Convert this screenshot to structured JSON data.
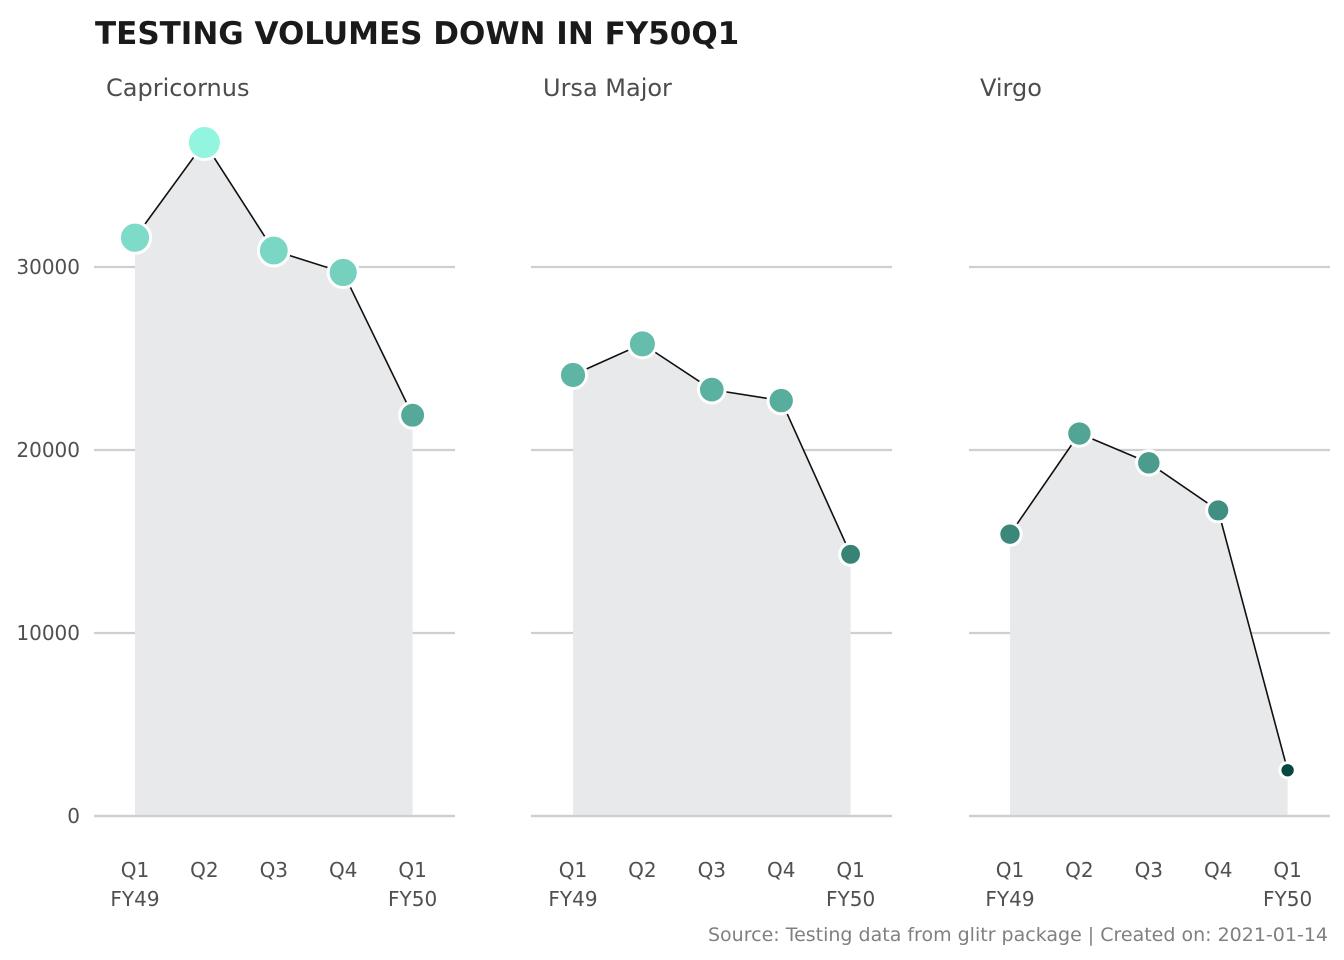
{
  "chart_data": {
    "type": "line",
    "title": "TESTING VOLUMES DOWN IN FY50Q1",
    "caption": "Source: Testing data from glitr package | Created on: 2021-01-14",
    "categories": [
      "Q1\nFY49",
      "Q2",
      "Q3",
      "Q4",
      "Q1\nFY50"
    ],
    "ylim": [
      0,
      37000
    ],
    "yticks": [
      0,
      10000,
      20000,
      30000
    ],
    "grid": true,
    "legend": "none",
    "color_scale": {
      "low": "#07473f",
      "high": "#92f5df",
      "min": 2500,
      "max": 36800
    },
    "area_fill": "#e7e9eb",
    "facets": [
      {
        "name": "Capricornus",
        "values": [
          31600,
          36800,
          30900,
          29700,
          21900
        ]
      },
      {
        "name": "Ursa Major",
        "values": [
          24100,
          25800,
          23300,
          22700,
          14300
        ]
      },
      {
        "name": "Virgo",
        "values": [
          15400,
          20900,
          19300,
          16700,
          2500
        ]
      }
    ]
  }
}
